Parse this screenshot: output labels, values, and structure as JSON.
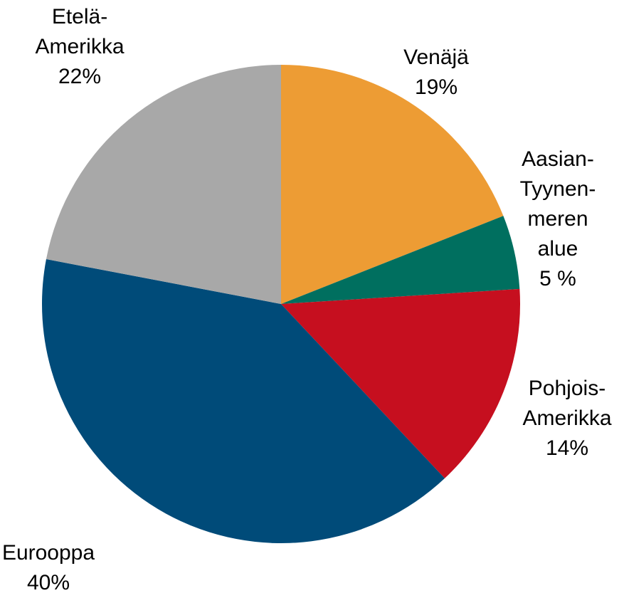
{
  "chart_data": {
    "type": "pie",
    "categories": [
      "Venäjä",
      "Aasian-\nTyynen-\nmeren\nalue",
      "Pohjois-\nAmerikka",
      "Eurooppa",
      "Etelä-\nAmerikka"
    ],
    "values": [
      19,
      5,
      14,
      40,
      22
    ],
    "value_labels": [
      "19%",
      "5 %",
      "14%",
      "40%",
      "22%"
    ],
    "colors": [
      "#ed9c34",
      "#006f5f",
      "#c60f1f",
      "#004b79",
      "#a8a8a8"
    ]
  }
}
